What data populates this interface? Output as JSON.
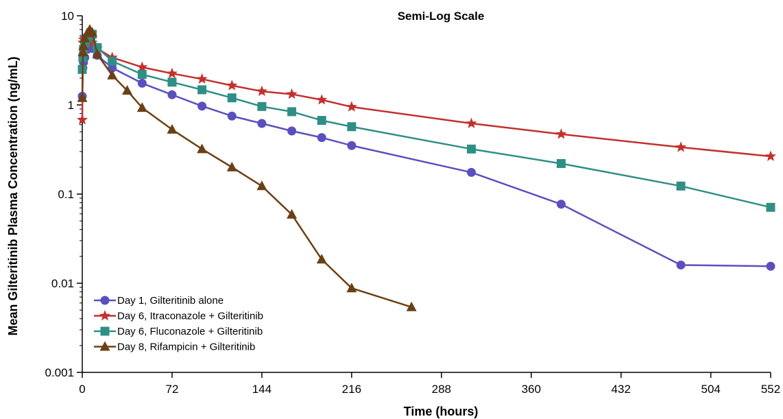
{
  "chart_data": {
    "type": "line",
    "title": "Semi-Log Scale",
    "xlabel": "Time (hours)",
    "ylabel": "Mean Gilteritinib Plasma Concentration (ng/mL)",
    "xlim": [
      0,
      552
    ],
    "ylim": [
      0.001,
      10
    ],
    "yscale": "log",
    "xticks": [
      0,
      72,
      144,
      216,
      288,
      360,
      432,
      504,
      552
    ],
    "xtick_labels": [
      "0",
      "72",
      "144",
      "216",
      "288",
      "360",
      "432",
      "504",
      "552"
    ],
    "yticks": [
      0.001,
      0.01,
      0.1,
      1,
      10
    ],
    "ytick_labels": [
      "0.001",
      "0.01",
      "0.1",
      "1",
      "10"
    ],
    "grid": false,
    "legend_position": "bottom-left",
    "series": [
      {
        "name": "Day 1, Gilteritinib alone",
        "color": "#5b4fbf",
        "marker": "circle",
        "x": [
          0,
          0.5,
          1,
          2,
          4,
          6,
          8,
          12,
          24,
          48,
          72,
          96,
          120,
          144,
          168,
          192,
          216,
          312,
          384,
          480,
          552
        ],
        "y": [
          1.25,
          2.6,
          3.0,
          3.4,
          4.2,
          4.4,
          4.3,
          3.6,
          2.6,
          1.75,
          1.3,
          0.97,
          0.75,
          0.62,
          0.51,
          0.43,
          0.35,
          0.175,
          0.077,
          0.016,
          0.0155
        ]
      },
      {
        "name": "Day 6, Itraconazole + Gilteritinib",
        "color": "#c3302e",
        "marker": "star",
        "x": [
          0,
          0.5,
          1,
          2,
          4,
          6,
          8,
          12,
          24,
          48,
          72,
          96,
          120,
          144,
          168,
          192,
          216,
          312,
          384,
          480,
          552
        ],
        "y": [
          0.68,
          5.0,
          5.4,
          5.6,
          5.8,
          5.5,
          5.0,
          4.3,
          3.4,
          2.65,
          2.25,
          1.95,
          1.65,
          1.42,
          1.32,
          1.14,
          0.95,
          0.62,
          0.47,
          0.335,
          0.265
        ]
      },
      {
        "name": "Day 6, Fluconazole + Gilteritinib",
        "color": "#2f8f86",
        "marker": "square",
        "x": [
          0,
          0.5,
          1,
          2,
          4,
          6,
          8,
          12,
          24,
          48,
          72,
          96,
          120,
          144,
          168,
          192,
          216,
          312,
          384,
          480,
          552
        ],
        "y": [
          2.5,
          3.4,
          4.2,
          5.0,
          5.6,
          6.0,
          6.2,
          4.4,
          3.1,
          2.2,
          1.8,
          1.48,
          1.2,
          0.96,
          0.84,
          0.67,
          0.57,
          0.32,
          0.22,
          0.123,
          0.071
        ]
      },
      {
        "name": "Day 8, Rifampicin + Gilteritinib",
        "color": "#6b4014",
        "marker": "triangle",
        "x": [
          0,
          0.5,
          1,
          2,
          4,
          6,
          8,
          12,
          24,
          36,
          48,
          72,
          96,
          120,
          144,
          168,
          192,
          216,
          264
        ],
        "y": [
          1.2,
          3.9,
          4.6,
          5.6,
          6.4,
          7.0,
          6.5,
          3.7,
          2.15,
          1.45,
          0.93,
          0.53,
          0.32,
          0.2,
          0.123,
          0.059,
          0.0185,
          0.0088,
          0.0054
        ]
      }
    ]
  }
}
